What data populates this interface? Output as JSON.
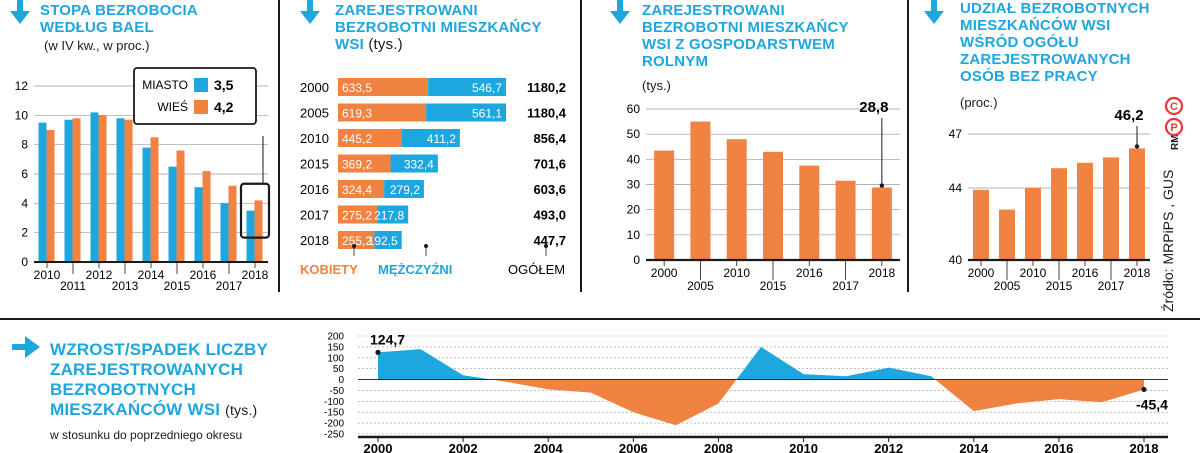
{
  "colors": {
    "blue": "#1ea6df",
    "orange": "#f08242",
    "dark": "#1a1a1a",
    "grid": "#9a9a9a"
  },
  "panel1": {
    "title_line1": "STOPA BEZROBOCIA",
    "title_line2": "WEDŁUG BAEL",
    "subtitle": "(w IV kw., w proc.)",
    "legend": {
      "miasto_label": "MIASTO",
      "miasto_value": "3,5",
      "wies_label": "WIEŚ",
      "wies_value": "4,2"
    }
  },
  "panel2": {
    "title_line1": "ZAREJESTROWANI",
    "title_line2": "BEZROBOTNI MIESZKAŃCY",
    "title_line3": "WSI",
    "title_unit": "(tys.)",
    "label_kobiety": "KOBIETY",
    "label_mezczyzni": "MĘŻCZYŹNI",
    "label_ogolem": "OGÓŁEM"
  },
  "panel3": {
    "title_line1": "ZAREJESTROWANI",
    "title_line2": "BEZROBOTNI MIESZKAŃCY",
    "title_line3": "WSI Z GOSPODARSTWEM",
    "title_line4": "ROLNYM",
    "unit": "(tys.)",
    "highlight": "28,8"
  },
  "panel4": {
    "title_line1": "UDZIAŁ BEZROBOTNYCH",
    "title_line2": "MIESZKAŃCÓW WSI",
    "title_line3": "WŚRÓD OGÓŁU",
    "title_line4": "ZAREJESTROWANYCH",
    "title_line5": "OSÓB BEZ PRACY",
    "unit": "(proc.)",
    "highlight": "46,2"
  },
  "panel5": {
    "title_line1": "WZROST/SPADEK LICZBY",
    "title_line2": "ZAREJESTROWANYCH",
    "title_line3": "BEZROBOTNYCH",
    "title_line4": "MIESZKAŃCÓW WSI",
    "title_unit": "(tys.)",
    "subtitle": "w stosunku do poprzedniego okresu",
    "label_start": "124,7",
    "label_end": "-45,4"
  },
  "source": "Źródło: MRPiPS , GUS",
  "credit": "RM",
  "chart_data": [
    {
      "type": "bar",
      "title": "STOPA BEZROBOCIA WEDŁUG BAEL",
      "subtitle": "(w IV kw., w proc.)",
      "categories": [
        "2010",
        "2011",
        "2012",
        "2013",
        "2014",
        "2015",
        "2016",
        "2017",
        "2018"
      ],
      "series": [
        {
          "name": "MIASTO",
          "values": [
            9.5,
            9.7,
            10.2,
            9.8,
            7.8,
            6.5,
            5.1,
            4.0,
            3.5
          ]
        },
        {
          "name": "WIEŚ",
          "values": [
            9.0,
            9.8,
            10.0,
            9.7,
            8.5,
            7.6,
            6.2,
            5.2,
            4.2
          ]
        }
      ],
      "yticks": [
        "0",
        "2",
        "4",
        "6",
        "8",
        "10",
        "12"
      ],
      "ylim": [
        0,
        12
      ],
      "legend": "top-right"
    },
    {
      "type": "bar",
      "title": "ZAREJESTROWANI BEZROBOTNI MIESZKAŃCY WSI",
      "unit": "(tys.)",
      "orientation": "horizontal-stacked",
      "categories": [
        "2000",
        "2005",
        "2010",
        "2015",
        "2016",
        "2017",
        "2018"
      ],
      "series": [
        {
          "name": "KOBIETY",
          "values": [
            633.5,
            619.3,
            445.2,
            369.2,
            324.4,
            275.2,
            255.2
          ],
          "labels": [
            "633,5",
            "619,3",
            "445,2",
            "369,2",
            "324,4",
            "275,2",
            "255,2"
          ]
        },
        {
          "name": "MĘŻCZYŹNI",
          "values": [
            546.7,
            561.1,
            411.2,
            332.4,
            279.2,
            217.8,
            192.5
          ],
          "labels": [
            "546,7",
            "561,1",
            "411,2",
            "332,4",
            "279,2",
            "217,8",
            "192,5"
          ]
        }
      ],
      "totals": {
        "name": "OGÓŁEM",
        "values": [
          1180.2,
          1180.4,
          856.4,
          701.6,
          603.6,
          493.0,
          447.7
        ],
        "labels": [
          "1180,2",
          "1180,4",
          "856,4",
          "701,6",
          "603,6",
          "493,0",
          "447,7"
        ]
      }
    },
    {
      "type": "bar",
      "title": "ZAREJESTROWANI BEZROBOTNI MIESZKAŃCY WSI Z GOSPODARSTWEM ROLNYM",
      "unit": "(tys.)",
      "categories": [
        "2000",
        "2005",
        "2010",
        "2015",
        "2016",
        "2017",
        "2018"
      ],
      "values": [
        43.5,
        55.0,
        48.0,
        43.0,
        37.5,
        31.5,
        28.8
      ],
      "yticks": [
        "0",
        "10",
        "20",
        "30",
        "40",
        "50",
        "60"
      ],
      "ylim": [
        0,
        60
      ]
    },
    {
      "type": "bar",
      "title": "UDZIAŁ BEZROBOTNYCH MIESZKAŃCÓW WSI WŚRÓD OGÓŁU ZAREJESTROWANYCH OSÓB BEZ PRACY",
      "unit": "(proc.)",
      "categories": [
        "2000",
        "2005",
        "2010",
        "2015",
        "2016",
        "2017",
        "2018"
      ],
      "values": [
        43.9,
        42.8,
        44.0,
        45.1,
        45.4,
        45.7,
        46.2
      ],
      "yticks": [
        "40",
        "44",
        "47"
      ],
      "ylim": [
        40,
        47
      ]
    },
    {
      "type": "area",
      "title": "WZROST/SPADEK LICZBY ZAREJESTROWANYCH BEZROBOTNYCH MIESZKAŃCÓW WSI",
      "unit": "(tys.)",
      "subtitle": "w stosunku do poprzedniego okresu",
      "x": [
        2000,
        2001,
        2002,
        2003,
        2004,
        2005,
        2006,
        2007,
        2008,
        2009,
        2010,
        2011,
        2012,
        2013,
        2014,
        2015,
        2016,
        2017,
        2018
      ],
      "y": [
        124.7,
        140,
        20,
        -10,
        -45,
        -60,
        -150,
        -210,
        -110,
        150,
        25,
        15,
        55,
        15,
        -145,
        -110,
        -90,
        -105,
        -45.4
      ],
      "xticks": [
        "2000",
        "2002",
        "2004",
        "2006",
        "2008",
        "2010",
        "2012",
        "2014",
        "2016",
        "2018"
      ],
      "yticks": [
        "200",
        "150",
        "100",
        "50",
        "0",
        "-50",
        "-100",
        "-150",
        "-200",
        "-250"
      ],
      "ylim": [
        -250,
        200
      ],
      "grid": true
    }
  ]
}
